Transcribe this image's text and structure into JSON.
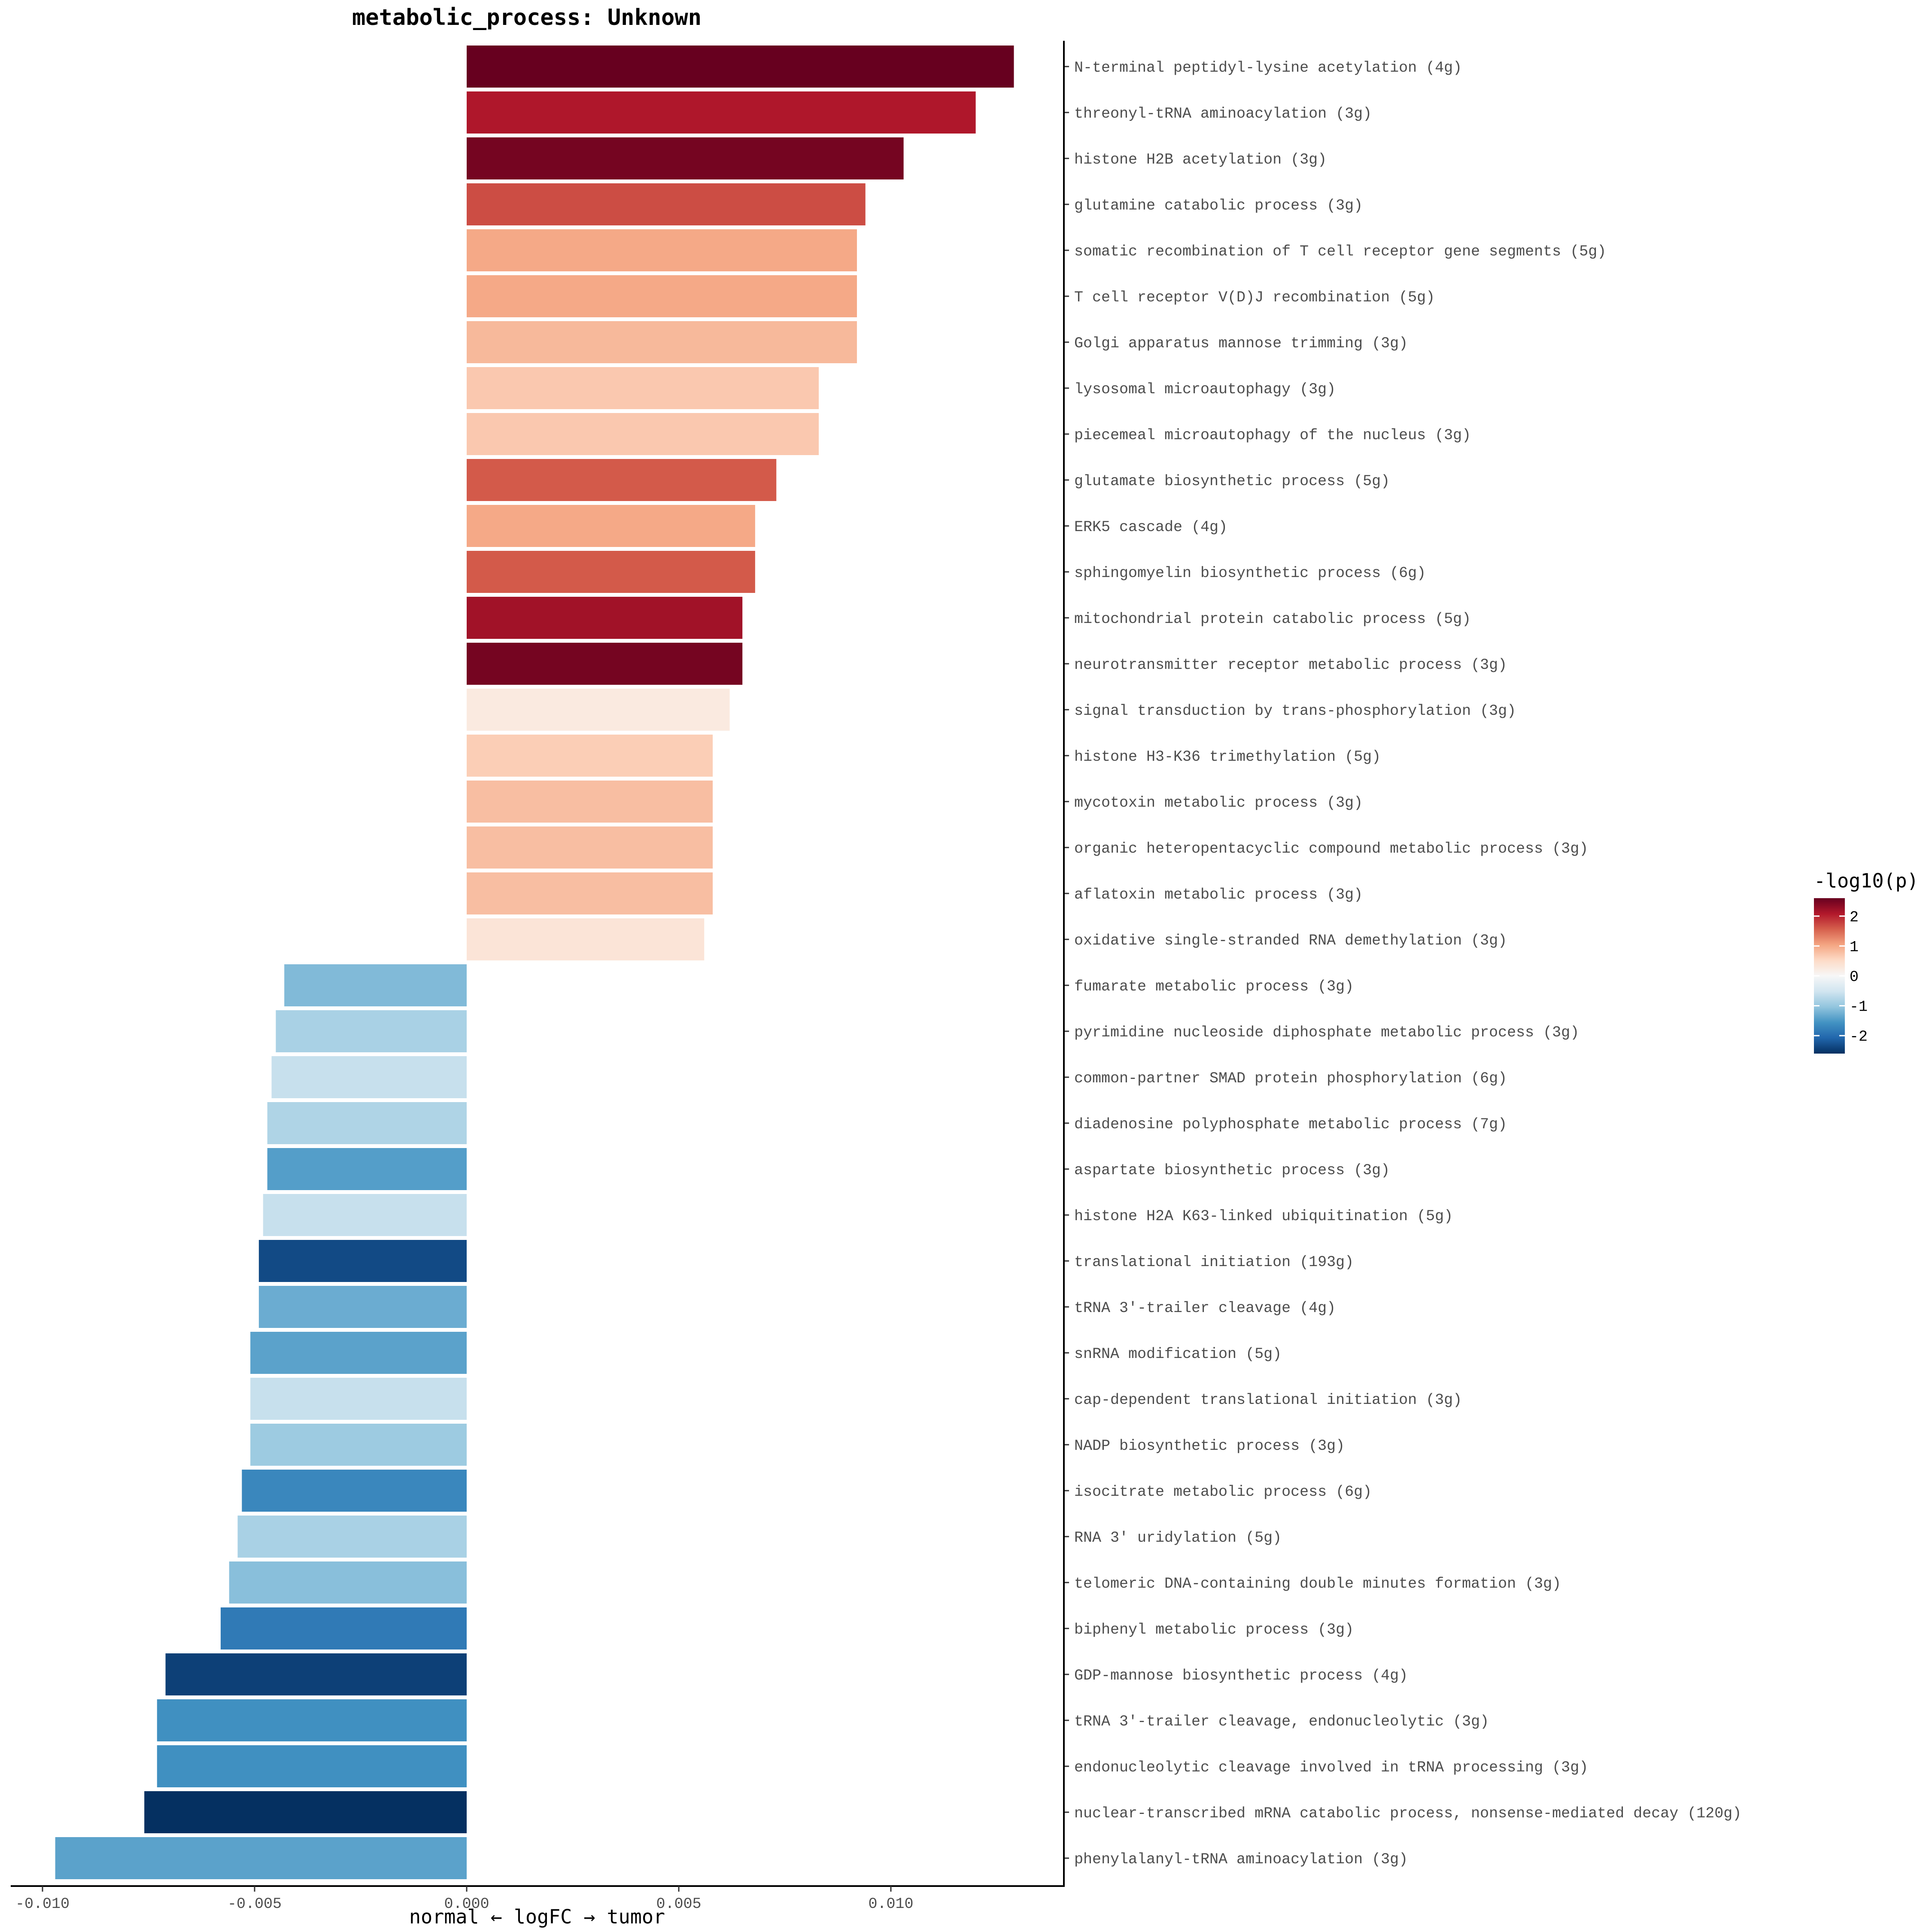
{
  "chart_data": {
    "type": "bar",
    "orientation": "horizontal",
    "title": "metabolic_process: Unknown",
    "xlabel": "normal ← logFC → tumor",
    "xlim": [
      -0.0107,
      0.014
    ],
    "xticks": [
      -0.01,
      -0.005,
      0.0,
      0.005,
      0.01
    ],
    "xtick_labels": [
      "-0.010",
      "-0.005",
      "0.000",
      "0.005",
      "0.010"
    ],
    "legend": {
      "title": "-log10(p)",
      "placement": "right",
      "ticks": [
        2,
        1,
        0,
        -1,
        -2
      ],
      "tick_labels": [
        "2",
        "1",
        "0",
        "-1",
        "-2"
      ],
      "range": [
        -2.6,
        2.6
      ],
      "colors": [
        "#053061",
        "#2166ac",
        "#4393c3",
        "#92c5de",
        "#d1e5f0",
        "#f7f7f7",
        "#fddbc7",
        "#f4a582",
        "#d6604d",
        "#b2182b",
        "#67001f"
      ]
    },
    "categories": [
      "N-terminal peptidyl-lysine acetylation (4g)",
      "threonyl-tRNA aminoacylation (3g)",
      "histone H2B acetylation (3g)",
      "glutamine catabolic process (3g)",
      "somatic recombination of T cell receptor gene segments (5g)",
      "T cell receptor V(D)J recombination (5g)",
      "Golgi apparatus mannose trimming (3g)",
      "lysosomal microautophagy (3g)",
      "piecemeal microautophagy of the nucleus (3g)",
      "glutamate biosynthetic process (5g)",
      "ERK5 cascade (4g)",
      "sphingomyelin biosynthetic process (6g)",
      "mitochondrial protein catabolic process (5g)",
      "neurotransmitter receptor metabolic process (3g)",
      "signal transduction by trans-phosphorylation (3g)",
      "histone H3-K36 trimethylation (5g)",
      "mycotoxin metabolic process (3g)",
      "organic heteropentacyclic compound metabolic process (3g)",
      "aflatoxin metabolic process (3g)",
      "oxidative single-stranded RNA demethylation (3g)",
      "fumarate metabolic process (3g)",
      "pyrimidine nucleoside diphosphate metabolic process (3g)",
      "common-partner SMAD protein phosphorylation (6g)",
      "diadenosine polyphosphate metabolic process (7g)",
      "aspartate biosynthetic process (3g)",
      "histone H2A K63-linked ubiquitination (5g)",
      "translational initiation (193g)",
      "tRNA 3'-trailer cleavage (4g)",
      "snRNA modification (5g)",
      "cap-dependent translational initiation (3g)",
      "NADP biosynthetic process (3g)",
      "isocitrate metabolic process (6g)",
      "RNA 3' uridylation (5g)",
      "telomeric DNA-containing double minutes formation (3g)",
      "biphenyl metabolic process (3g)",
      "GDP-mannose biosynthetic process (4g)",
      "tRNA 3'-trailer cleavage, endonucleolytic (3g)",
      "endonucleolytic cleavage involved in tRNA processing (3g)",
      "nuclear-transcribed mRNA catabolic process, nonsense-mediated decay (120g)",
      "phenylalanyl-tRNA aminoacylation (3g)"
    ],
    "values": [
      0.0129,
      0.012,
      0.0103,
      0.0094,
      0.0092,
      0.0092,
      0.0092,
      0.0083,
      0.0083,
      0.0073,
      0.0068,
      0.0068,
      0.0065,
      0.0065,
      0.0062,
      0.0058,
      0.0058,
      0.0058,
      0.0058,
      0.0056,
      -0.0043,
      -0.0045,
      -0.0046,
      -0.0047,
      -0.0047,
      -0.0048,
      -0.0049,
      -0.0049,
      -0.0051,
      -0.0051,
      -0.0051,
      -0.0053,
      -0.0054,
      -0.0056,
      -0.0058,
      -0.0071,
      -0.0073,
      -0.0073,
      -0.0076,
      -0.0097
    ],
    "neg_log10_p": [
      2.6,
      2.1,
      2.5,
      1.7,
      1.0,
      1.0,
      0.85,
      0.7,
      0.7,
      1.6,
      1.0,
      1.6,
      2.2,
      2.5,
      0.25,
      0.65,
      0.8,
      0.8,
      0.8,
      0.35,
      -1.15,
      -0.85,
      -0.6,
      -0.8,
      -1.45,
      -0.6,
      -2.35,
      -1.3,
      -1.4,
      -0.6,
      -0.95,
      -1.7,
      -0.85,
      -1.1,
      -1.85,
      -2.45,
      -1.6,
      -1.6,
      -2.6,
      -1.4
    ]
  }
}
